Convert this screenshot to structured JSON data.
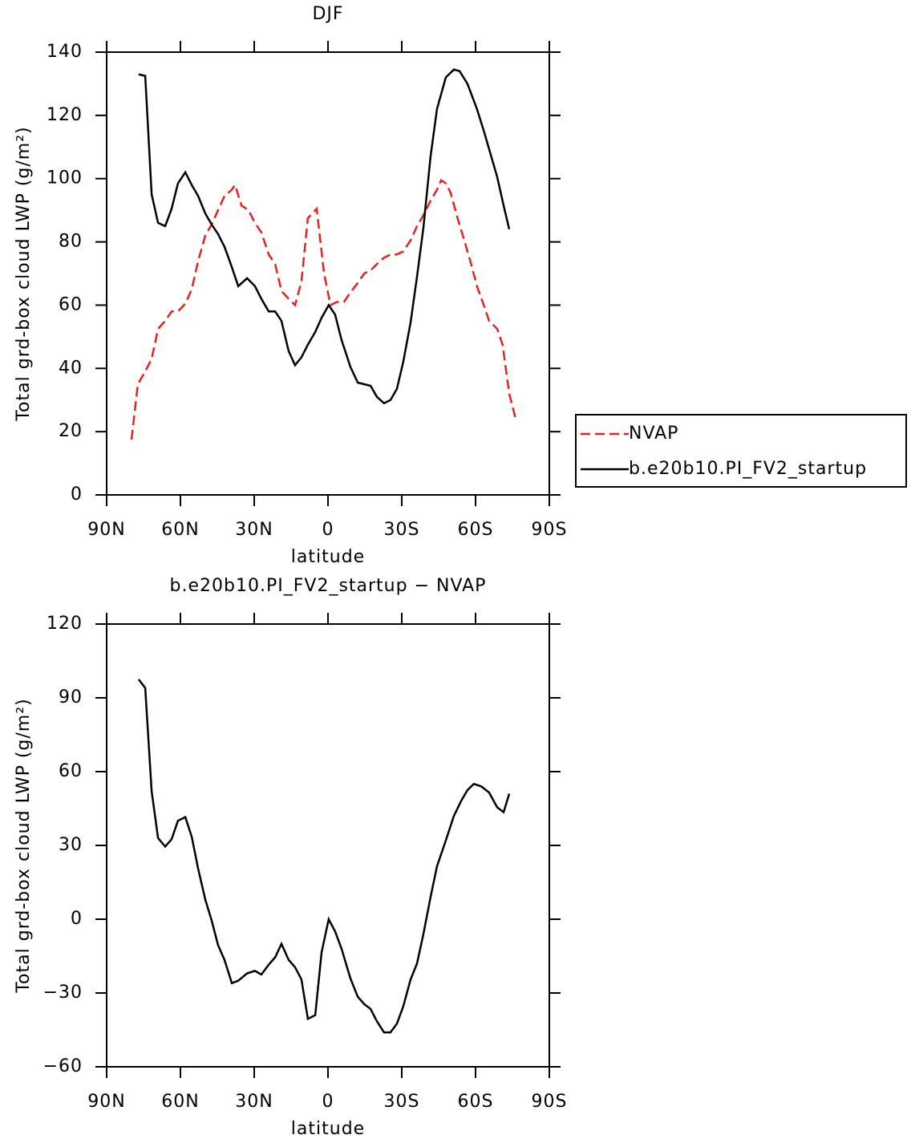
{
  "chart_data": [
    {
      "type": "line",
      "title": "DJF",
      "x_label": "latitude",
      "y_label": "Total grd-box cloud LWP (g/m²)",
      "xlim": [
        90,
        -90
      ],
      "xticks": [
        {
          "value": 90,
          "label": "90N"
        },
        {
          "value": 60,
          "label": "60N"
        },
        {
          "value": 30,
          "label": "30N"
        },
        0,
        {
          "value": -30,
          "label": "30S"
        },
        {
          "value": -60,
          "label": "60S"
        },
        {
          "value": -90,
          "label": "90S"
        }
      ],
      "ylim": [
        0,
        140
      ],
      "yticks": [
        0,
        20,
        40,
        60,
        80,
        100,
        120,
        140
      ],
      "legend": "right",
      "series": [
        {
          "name": "NVAP",
          "color": "#e8201e",
          "dashed": true,
          "x": [
            79.9,
            77.3,
            74.7,
            71.7,
            69.1,
            66.2,
            63.6,
            61,
            58,
            55.4,
            52.8,
            49.9,
            47.3,
            44.7,
            42.1,
            39.1,
            37.8,
            35.2,
            32.3,
            29.7,
            27.1,
            24.1,
            21.5,
            18.9,
            16,
            13.4,
            10.8,
            8.2,
            4.6,
            1.6,
            -1,
            -3.6,
            -6.5,
            -9.1,
            -12.1,
            -14.7,
            -17.3,
            -19.9,
            -22.8,
            -25.4,
            -28,
            -30.6,
            -33.6,
            -36.2,
            -38.8,
            -41.7,
            -44.3,
            -46,
            -47.9,
            -49.9,
            -52.5,
            -55.4,
            -58,
            -60.6,
            -63.6,
            -65.5,
            -68.8,
            -71,
            -73.7,
            -76.3
          ],
          "values": [
            17.5,
            35,
            38.5,
            43,
            52.5,
            55,
            58,
            58,
            60.5,
            65,
            74,
            82,
            85.5,
            90,
            94.5,
            96.5,
            98,
            91.5,
            90,
            86,
            83,
            76,
            73,
            64.5,
            62,
            60,
            67.5,
            87.5,
            90.5,
            70,
            60,
            61,
            61,
            64,
            67,
            70,
            71,
            73,
            75,
            76,
            76,
            77,
            80.5,
            85,
            88.5,
            93,
            96.5,
            99.5,
            98.5,
            95.5,
            88,
            80.5,
            73.5,
            66,
            59.5,
            55,
            52.5,
            47.5,
            32,
            24
          ]
        },
        {
          "name": "b.e20b10.PI_FV2_startup",
          "color": "#000000",
          "dashed": false,
          "x": [
            77,
            74.3,
            71.7,
            69.1,
            66.2,
            63.6,
            61,
            58,
            55.4,
            52.8,
            49.9,
            47.3,
            44.7,
            42.1,
            39.1,
            36.5,
            32.9,
            29.7,
            27.1,
            24.1,
            21.5,
            18.9,
            16,
            13.4,
            10.8,
            8.2,
            5.2,
            2.6,
            -0.3,
            -2.9,
            -5.5,
            -9.1,
            -12.1,
            -14.7,
            -17.3,
            -19.9,
            -22.8,
            -25.4,
            -28,
            -30.6,
            -33.6,
            -36.2,
            -38.8,
            -41.7,
            -44.3,
            -47.9,
            -51.2,
            -53.5,
            -56.7,
            -60.6,
            -63.6,
            -66.2,
            -68.8,
            -71.4,
            -73.7
          ],
          "values": [
            133,
            132.5,
            95,
            86,
            85,
            90.5,
            98.5,
            102,
            98,
            94.5,
            89,
            85.5,
            82.5,
            78.5,
            72,
            66,
            68.5,
            66,
            62,
            58,
            58,
            55,
            45.5,
            41,
            43.5,
            47.5,
            51.5,
            56,
            60,
            57,
            49,
            40.5,
            35.5,
            35,
            34.5,
            31,
            29,
            30,
            33.5,
            42,
            54.5,
            69,
            84.5,
            107,
            122,
            132,
            134.5,
            134,
            130,
            122,
            114.5,
            107.5,
            100.5,
            91.5,
            84
          ]
        }
      ]
    },
    {
      "type": "line",
      "title": "b.e20b10.PI_FV2_startup − NVAP",
      "x_label": "latitude",
      "y_label": "Total grd-box cloud LWP (g/m²)",
      "xlim": [
        90,
        -90
      ],
      "xticks": [
        {
          "value": 90,
          "label": "90N"
        },
        {
          "value": 60,
          "label": "60N"
        },
        {
          "value": 30,
          "label": "30N"
        },
        0,
        {
          "value": -30,
          "label": "30S"
        },
        {
          "value": -60,
          "label": "60S"
        },
        {
          "value": -90,
          "label": "90S"
        }
      ],
      "ylim": [
        -60,
        120
      ],
      "yticks": [
        {
          "value": -60,
          "label": "−60"
        },
        {
          "value": -30,
          "label": "−30"
        },
        0,
        30,
        60,
        90,
        120
      ],
      "series": [
        {
          "color": "#000000",
          "dashed": false,
          "x": [
            77,
            74.3,
            71.7,
            69.1,
            66.2,
            63.6,
            61,
            58,
            55.4,
            52.8,
            49.9,
            47.3,
            44.7,
            42.1,
            39.1,
            36.5,
            32.9,
            29.7,
            27.1,
            24.1,
            21.5,
            18.9,
            16,
            13.4,
            10.8,
            8.2,
            5.2,
            2.6,
            -0.3,
            -2.9,
            -5.5,
            -9.1,
            -12.1,
            -14.7,
            -17.3,
            -19.9,
            -22.8,
            -25.4,
            -28,
            -30.6,
            -33.6,
            -36.2,
            -38.8,
            -41.7,
            -44.3,
            -47.9,
            -51.2,
            -54.1,
            -56.7,
            -59.3,
            -62.3,
            -65.5,
            -68.8,
            -71.4,
            -73.7
          ],
          "values": [
            97.5,
            94,
            52,
            33,
            29.5,
            32.5,
            40,
            41.5,
            33.5,
            20.5,
            8,
            -0.5,
            -10.5,
            -16.5,
            -26,
            -25,
            -22,
            -21,
            -22.5,
            -18.5,
            -15.5,
            -10,
            -16.5,
            -19.5,
            -24.5,
            -40.5,
            -39,
            -13.5,
            0,
            -5,
            -12,
            -24,
            -31.5,
            -34.5,
            -36.5,
            -41.5,
            -46,
            -46,
            -42.5,
            -35.5,
            -24.5,
            -18,
            -6,
            9,
            21.5,
            32,
            42,
            48,
            52.5,
            55,
            54,
            51.5,
            45.5,
            43.5,
            51
          ]
        }
      ]
    }
  ]
}
